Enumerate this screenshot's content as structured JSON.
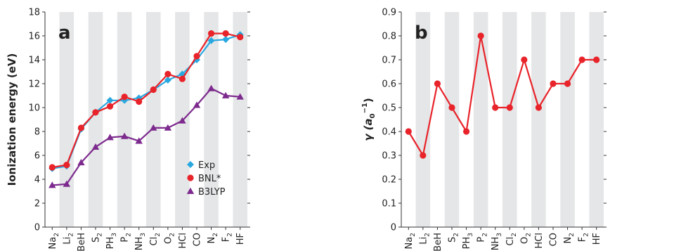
{
  "chart_data": [
    {
      "panel_label": "a",
      "type": "line",
      "ylabel": "Ionization energy (eV)",
      "ylim": [
        0,
        18
      ],
      "yticks": [
        "0",
        "2",
        "4",
        "6",
        "8",
        "10",
        "12",
        "14",
        "16",
        "18"
      ],
      "categories": [
        {
          "base": "Na",
          "sub": "2"
        },
        {
          "base": "Li",
          "sub": "2"
        },
        {
          "base": "BeH",
          "sub": ""
        },
        {
          "base": "S",
          "sub": "2"
        },
        {
          "base": "PH",
          "sub": "3"
        },
        {
          "base": "P",
          "sub": "2"
        },
        {
          "base": "NH",
          "sub": "3"
        },
        {
          "base": "Cl",
          "sub": "2"
        },
        {
          "base": "O",
          "sub": "2"
        },
        {
          "base": "HCl",
          "sub": ""
        },
        {
          "base": "CO",
          "sub": ""
        },
        {
          "base": "N",
          "sub": "2"
        },
        {
          "base": "F",
          "sub": "2"
        },
        {
          "base": "HF",
          "sub": ""
        }
      ],
      "alternating_shading": true,
      "legend_position": "lower-right",
      "series": [
        {
          "name": "Exp",
          "color": "#29a8e0",
          "marker": "diamond",
          "values": [
            4.9,
            5.1,
            8.2,
            9.6,
            10.6,
            10.6,
            10.8,
            11.5,
            12.3,
            12.8,
            14.0,
            15.6,
            15.7,
            16.1
          ]
        },
        {
          "name": "BNL*",
          "color": "#e8232a",
          "marker": "circle",
          "values": [
            5.0,
            5.2,
            8.3,
            9.6,
            10.1,
            10.9,
            10.5,
            11.5,
            12.8,
            12.4,
            14.3,
            16.2,
            16.2,
            15.9
          ]
        },
        {
          "name": "B3LYP",
          "color": "#7d2a8e",
          "marker": "triangle",
          "values": [
            3.5,
            3.6,
            5.4,
            6.7,
            7.5,
            7.6,
            7.2,
            8.3,
            8.3,
            8.9,
            10.2,
            11.6,
            11.0,
            10.9
          ]
        }
      ]
    },
    {
      "panel_label": "b",
      "type": "line",
      "ylabel_base": "γ (a",
      "ylabel_sub": "0",
      "ylabel_sup": "−1",
      "ylabel_close": ")",
      "ylim": [
        0,
        0.9
      ],
      "yticks": [
        "0",
        "0.1",
        "0.2",
        "0.3",
        "0.4",
        "0.5",
        "0.6",
        "0.7",
        "0.8",
        "0.9"
      ],
      "categories": [
        {
          "base": "Na",
          "sub": "2"
        },
        {
          "base": "Li",
          "sub": "2"
        },
        {
          "base": "BeH",
          "sub": ""
        },
        {
          "base": "S",
          "sub": "2"
        },
        {
          "base": "PH",
          "sub": "3"
        },
        {
          "base": "P",
          "sub": "2"
        },
        {
          "base": "NH",
          "sub": "3"
        },
        {
          "base": "Cl",
          "sub": "2"
        },
        {
          "base": "O",
          "sub": "2"
        },
        {
          "base": "HCl",
          "sub": ""
        },
        {
          "base": "CO",
          "sub": ""
        },
        {
          "base": "N",
          "sub": "2"
        },
        {
          "base": "F",
          "sub": "2"
        },
        {
          "base": "HF",
          "sub": ""
        }
      ],
      "alternating_shading": true,
      "series": [
        {
          "color": "#e8232a",
          "marker": "circle",
          "values": [
            0.4,
            0.3,
            0.6,
            0.5,
            0.4,
            0.8,
            0.5,
            0.5,
            0.7,
            0.5,
            0.6,
            0.6,
            0.7,
            0.7
          ]
        }
      ]
    }
  ]
}
